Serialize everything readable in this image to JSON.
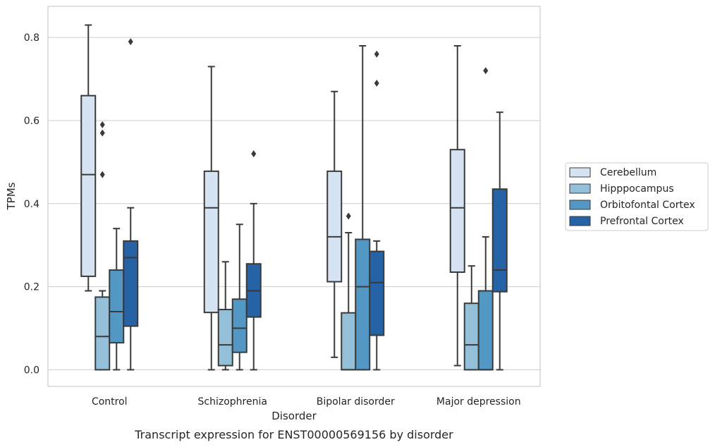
{
  "chart_data": {
    "type": "box",
    "title": "",
    "caption": "Transcript expression for ENST00000569156 by disorder",
    "xlabel": "Disorder",
    "ylabel": "TPMs",
    "ylim": [
      -0.04,
      0.875
    ],
    "yticks": [
      0.0,
      0.2,
      0.4,
      0.6,
      0.8
    ],
    "ytick_labels": [
      "0.0",
      "0.2",
      "0.4",
      "0.6",
      "0.8"
    ],
    "grid": "horizontal",
    "legend_position": "right",
    "categories": [
      "Control",
      "Schizophrenia",
      "Bipolar disorder",
      "Major depression"
    ],
    "series": [
      {
        "name": "Cerebellum",
        "color": "#d5e3f2",
        "boxes": [
          {
            "whislo": 0.19,
            "q1": 0.225,
            "med": 0.47,
            "q3": 0.66,
            "whishi": 0.83,
            "fliers": []
          },
          {
            "whislo": 0.0,
            "q1": 0.138,
            "med": 0.39,
            "q3": 0.478,
            "whishi": 0.73,
            "fliers": []
          },
          {
            "whislo": 0.03,
            "q1": 0.212,
            "med": 0.32,
            "q3": 0.478,
            "whishi": 0.67,
            "fliers": []
          },
          {
            "whislo": 0.01,
            "q1": 0.235,
            "med": 0.39,
            "q3": 0.53,
            "whishi": 0.78,
            "fliers": []
          }
        ]
      },
      {
        "name": "Hipppocampus",
        "color": "#93bfd9",
        "boxes": [
          {
            "whislo": 0.0,
            "q1": 0.0,
            "med": 0.08,
            "q3": 0.175,
            "whishi": 0.19,
            "fliers": [
              0.59,
              0.57,
              0.47
            ]
          },
          {
            "whislo": 0.0,
            "q1": 0.01,
            "med": 0.06,
            "q3": 0.145,
            "whishi": 0.26,
            "fliers": []
          },
          {
            "whislo": 0.0,
            "q1": 0.0,
            "med": 0.0,
            "q3": 0.137,
            "whishi": 0.33,
            "fliers": [
              0.37
            ]
          },
          {
            "whislo": 0.0,
            "q1": 0.0,
            "med": 0.06,
            "q3": 0.16,
            "whishi": 0.25,
            "fliers": []
          }
        ]
      },
      {
        "name": "Orbitofontal Cortex",
        "color": "#5397c4",
        "boxes": [
          {
            "whislo": 0.0,
            "q1": 0.065,
            "med": 0.14,
            "q3": 0.24,
            "whishi": 0.34,
            "fliers": []
          },
          {
            "whislo": 0.0,
            "q1": 0.042,
            "med": 0.1,
            "q3": 0.17,
            "whishi": 0.35,
            "fliers": []
          },
          {
            "whislo": 0.0,
            "q1": 0.0,
            "med": 0.2,
            "q3": 0.314,
            "whishi": 0.78,
            "fliers": []
          },
          {
            "whislo": 0.0,
            "q1": 0.0,
            "med": 0.0,
            "q3": 0.19,
            "whishi": 0.32,
            "fliers": [
              0.72
            ]
          }
        ]
      },
      {
        "name": "Prefrontal Cortex",
        "color": "#2663a6",
        "boxes": [
          {
            "whislo": 0.0,
            "q1": 0.105,
            "med": 0.27,
            "q3": 0.31,
            "whishi": 0.39,
            "fliers": [
              0.79
            ]
          },
          {
            "whislo": 0.0,
            "q1": 0.127,
            "med": 0.19,
            "q3": 0.255,
            "whishi": 0.4,
            "fliers": [
              0.52
            ]
          },
          {
            "whislo": 0.0,
            "q1": 0.083,
            "med": 0.21,
            "q3": 0.285,
            "whishi": 0.31,
            "fliers": [
              0.76,
              0.69
            ]
          },
          {
            "whislo": 0.0,
            "q1": 0.188,
            "med": 0.24,
            "q3": 0.435,
            "whishi": 0.62,
            "fliers": []
          }
        ]
      }
    ]
  }
}
